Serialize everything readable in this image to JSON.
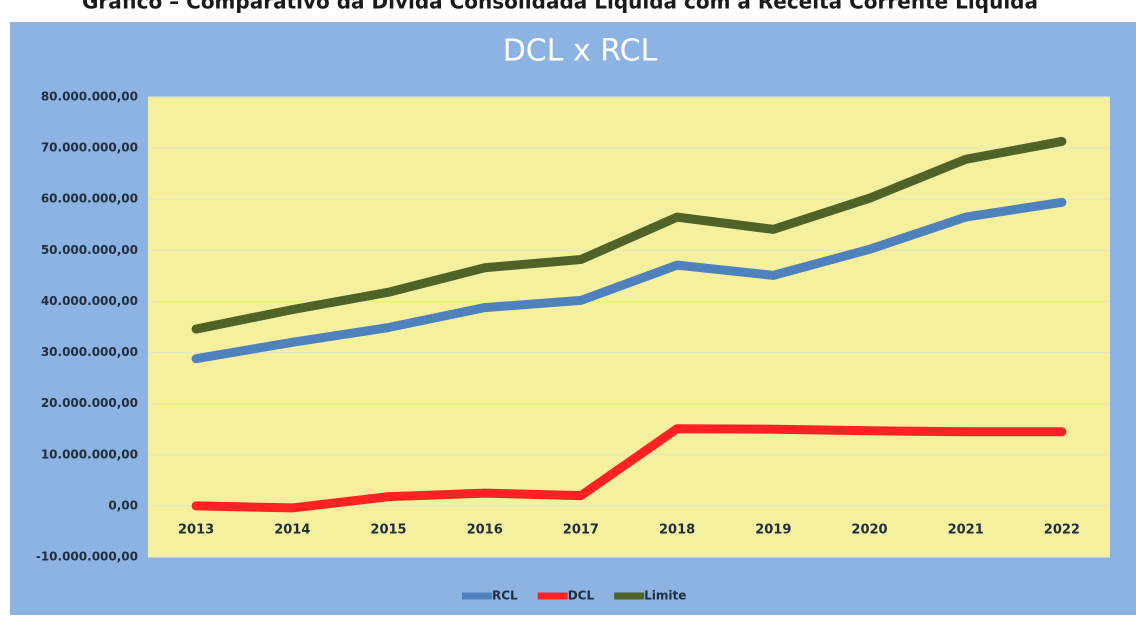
{
  "chart_data": {
    "type": "line",
    "caption": "Gráfico – Comparativo da Dívida Consolidada Líquida com a Receita Corrente Líquida",
    "title": "DCL x RCL",
    "categories": [
      "2013",
      "2014",
      "2015",
      "2016",
      "2017",
      "2018",
      "2019",
      "2020",
      "2021",
      "2022"
    ],
    "series": [
      {
        "name": "RCL",
        "color": "#4f81bd",
        "values": [
          28800000,
          32000000,
          34900000,
          38800000,
          40200000,
          47100000,
          45100000,
          50200000,
          56500000,
          59400000
        ]
      },
      {
        "name": "DCL",
        "color": "#ff2222",
        "values": [
          0,
          -400000,
          1800000,
          2500000,
          2000000,
          15100000,
          15000000,
          14700000,
          14500000,
          14500000
        ]
      },
      {
        "name": "Limite",
        "color": "#4f6228",
        "values": [
          34600000,
          38400000,
          41800000,
          46600000,
          48200000,
          56500000,
          54100000,
          60200000,
          67800000,
          71300000
        ]
      }
    ],
    "ylim": [
      -10000000,
      80000000
    ],
    "yticks": [
      {
        "value": -10000000,
        "label": "-10.000.000,00"
      },
      {
        "value": 0,
        "label": "0,00"
      },
      {
        "value": 10000000,
        "label": "10.000.000,00"
      },
      {
        "value": 20000000,
        "label": "20.000.000,00"
      },
      {
        "value": 30000000,
        "label": "30.000.000,00"
      },
      {
        "value": 40000000,
        "label": "40.000.000,00"
      },
      {
        "value": 50000000,
        "label": "50.000.000,00"
      },
      {
        "value": 60000000,
        "label": "60.000.000,00"
      },
      {
        "value": 70000000,
        "label": "70.000.000,00"
      },
      {
        "value": 80000000,
        "label": "80.000.000,00"
      }
    ],
    "grid": true,
    "legend": "bottom"
  }
}
